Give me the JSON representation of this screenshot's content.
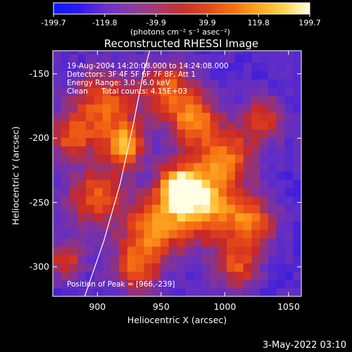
{
  "colorbar": {
    "ticks": [
      "-199.7",
      "-119.8",
      "-39.9",
      "39.9",
      "119.8",
      "199.7"
    ],
    "unit_label": "(photons cm⁻² s⁻¹ asec⁻²)",
    "colors": [
      "#0a1aff",
      "#3018f0",
      "#6a2fd0",
      "#8a3aa8",
      "#a83a70",
      "#c72e2e",
      "#e0481c",
      "#f57010",
      "#ffa51f",
      "#ffd54f",
      "#ffffe8"
    ]
  },
  "title": "Reconstructed RHESSI Image",
  "annotations": {
    "time_range": "19-Aug-2004 14:20:08.000 to 14:24:08.000",
    "detectors": "Detectors: 3F 4F 5F 6F 7F 8F, Att 1",
    "energy": "Energy Range: 3.0 - 6.0 keV",
    "clean": "Clean",
    "total_counts": "Total counts: 4.15E+03",
    "peak": "Position of Peak = [966,-239]"
  },
  "footer_date": "3-May-2022 03:10",
  "chart_data": {
    "type": "heatmap",
    "title": "Reconstructed RHESSI Image",
    "xlabel": "Heliocentric X (arcsec)",
    "ylabel": "Heliocentric Y (arcsec)",
    "xlim": [
      865,
      1060
    ],
    "ylim": [
      -323,
      -132
    ],
    "xticks": [
      900,
      950,
      1000,
      1050
    ],
    "yticks": [
      -150,
      -200,
      -250,
      -300
    ],
    "value_range": [
      -199.7,
      199.7
    ],
    "peak_position": [
      966,
      -239
    ],
    "limb_curve": [
      [
        890,
        -323
      ],
      [
        905,
        -280
      ],
      [
        918,
        -235
      ],
      [
        928,
        -190
      ],
      [
        936,
        -150
      ],
      [
        941,
        -132
      ]
    ],
    "sources": [
      {
        "x": 966,
        "y": -239,
        "peak": 199.7,
        "sigma": 13
      },
      {
        "x": 922,
        "y": -205,
        "peak": 130,
        "sigma": 11
      },
      {
        "x": 975,
        "y": -185,
        "peak": 105,
        "sigma": 14
      },
      {
        "x": 985,
        "y": -255,
        "peak": 110,
        "sigma": 18
      },
      {
        "x": 1000,
        "y": -215,
        "peak": 95,
        "sigma": 16
      },
      {
        "x": 945,
        "y": -270,
        "peak": 95,
        "sigma": 16
      },
      {
        "x": 905,
        "y": -175,
        "peak": 80,
        "sigma": 18
      },
      {
        "x": 1020,
        "y": -265,
        "peak": 75,
        "sigma": 14
      },
      {
        "x": 900,
        "y": -245,
        "peak": 80,
        "sigma": 16
      },
      {
        "x": 955,
        "y": -160,
        "peak": 70,
        "sigma": 14
      },
      {
        "x": 930,
        "y": -300,
        "peak": 65,
        "sigma": 14
      },
      {
        "x": 1010,
        "y": -300,
        "peak": 60,
        "sigma": 12
      },
      {
        "x": 1030,
        "y": -185,
        "peak": 50,
        "sigma": 12
      },
      {
        "x": 880,
        "y": -200,
        "peak": 55,
        "sigma": 12
      },
      {
        "x": 875,
        "y": -295,
        "peak": 45,
        "sigma": 10
      }
    ]
  }
}
